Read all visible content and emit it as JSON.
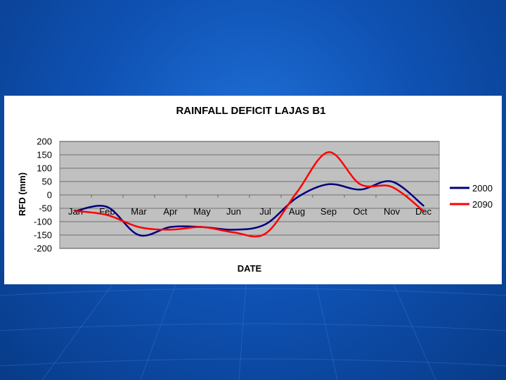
{
  "colors": {
    "background": "#0f52b4",
    "plot_area": "#c0c0c0",
    "series_2000": "#000080",
    "series_2090": "#ff0000"
  },
  "chart_data": {
    "type": "line",
    "title": "RAINFALL DEFICIT LAJAS B1",
    "xlabel": "DATE",
    "ylabel": "RFD (mm)",
    "ylim": [
      -200,
      200
    ],
    "yticks": [
      200,
      150,
      100,
      50,
      0,
      -50,
      -100,
      -150,
      -200
    ],
    "categories": [
      "Jan",
      "Feb",
      "Mar",
      "Apr",
      "May",
      "Jun",
      "Jul",
      "Aug",
      "Sep",
      "Oct",
      "Nov",
      "Dec"
    ],
    "grid": "horizontal",
    "legend_position": "right",
    "series": [
      {
        "name": "2000",
        "color": "#000080",
        "values": [
          -60,
          -45,
          -150,
          -120,
          -120,
          -130,
          -110,
          -10,
          40,
          20,
          50,
          -40
        ]
      },
      {
        "name": "2090",
        "color": "#ff0000",
        "values": [
          -60,
          -75,
          -120,
          -130,
          -120,
          -140,
          -145,
          10,
          160,
          40,
          30,
          -60
        ]
      }
    ]
  }
}
